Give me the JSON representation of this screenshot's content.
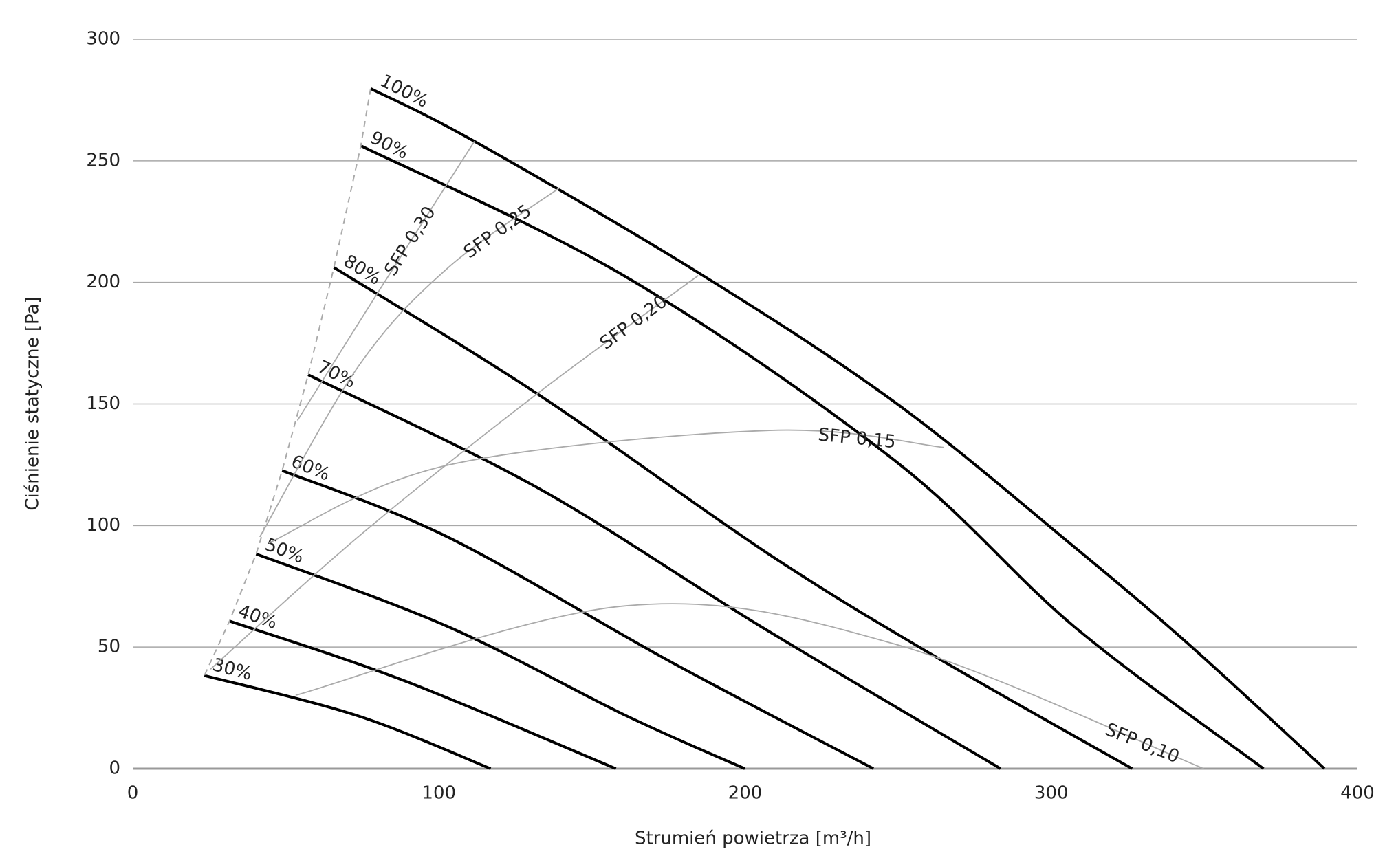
{
  "chart_data": {
    "type": "line",
    "x_label": "Strumień powietrza [m³/h]",
    "y_label": "Ciśnienie statyczne [Pa]",
    "xlim": [
      0,
      400
    ],
    "xticks": [
      0,
      100,
      200,
      300,
      400
    ],
    "ylim": [
      0,
      300
    ],
    "yticks": [
      0,
      50,
      100,
      150,
      200,
      250,
      300
    ],
    "grid": true,
    "series": [
      {
        "name": "100%",
        "color": "#000000",
        "width": 4,
        "label_at": "start",
        "x": [
          77.7,
          111.6,
          184.7,
          249,
          307,
          345,
          389.2
        ],
        "values": [
          279.7,
          258,
          204,
          150.6,
          91.7,
          51,
          0
        ]
      },
      {
        "name": "90%",
        "color": "#000000",
        "width": 4,
        "label_at": "start",
        "x": [
          74.5,
          161.3,
          249,
          307.4,
          369.3
        ],
        "values": [
          256.2,
          202.1,
          126.6,
          58.5,
          0
        ]
      },
      {
        "name": "80%",
        "color": "#000000",
        "width": 4,
        "label_at": "start",
        "x": [
          65.7,
          132.1,
          208,
          263.6,
          326.4
        ],
        "values": [
          206.1,
          154.2,
          88,
          45,
          0
        ]
      },
      {
        "name": "70%",
        "color": "#000000",
        "width": 4,
        "label_at": "start",
        "x": [
          57.3,
          132.1,
          205.1,
          283.4
        ],
        "values": [
          162,
          115.6,
          58.5,
          0
        ]
      },
      {
        "name": "60%",
        "color": "#000000",
        "width": 4,
        "label_at": "start",
        "x": [
          48.8,
          102.8,
          175.9,
          241.9
        ],
        "values": [
          122.6,
          95.3,
          43.8,
          0
        ]
      },
      {
        "name": "50%",
        "color": "#000000",
        "width": 4,
        "label_at": "start",
        "x": [
          40.3,
          102.8,
          161.3,
          199.9
        ],
        "values": [
          88.3,
          58.5,
          21.7,
          0
        ]
      },
      {
        "name": "40%",
        "color": "#000000",
        "width": 4,
        "label_at": "start",
        "x": [
          31.6,
          88.2,
          157.8
        ],
        "values": [
          60.7,
          36.4,
          0
        ]
      },
      {
        "name": "30%",
        "color": "#000000",
        "width": 4,
        "label_at": "start",
        "x": [
          23.4,
          73.6,
          116.9
        ],
        "values": [
          38.3,
          21.7,
          0
        ]
      },
      {
        "name": "SFP 0,30",
        "color": "#aaaaaa",
        "width": 1.8,
        "label_at": "middle",
        "x": [
          53.8,
          79.5,
          111.6
        ],
        "values": [
          143.2,
          194.7,
          258
        ]
      },
      {
        "name": "SFP 0,25",
        "color": "#aaaaaa",
        "width": 1.8,
        "label_at": "middle",
        "x": [
          41.5,
          73.6,
          102.8,
          139.4
        ],
        "values": [
          95.3,
          165.3,
          205.8,
          238.9
        ]
      },
      {
        "name": "SFP 0,20",
        "color": "#aaaaaa",
        "width": 1.8,
        "label_at": "middle",
        "x": [
          25.4,
          73.6,
          132.1,
          184.7
        ],
        "values": [
          40.9,
          95.3,
          154.2,
          202.8
        ]
      },
      {
        "name": "SFP 0,15",
        "color": "#aaaaaa",
        "width": 1.8,
        "label_at": "middle",
        "x": [
          44.4,
          102.8,
          208,
          265
        ],
        "values": [
          92.8,
          124.8,
          139.1,
          132.1
        ]
      },
      {
        "name": "SFP 0,10",
        "color": "#aaaaaa",
        "width": 1.8,
        "label_at": "middle",
        "x": [
          53.2,
          161.3,
          249,
          349.8
        ],
        "values": [
          30.2,
          67,
          51.2,
          0
        ]
      }
    ]
  }
}
